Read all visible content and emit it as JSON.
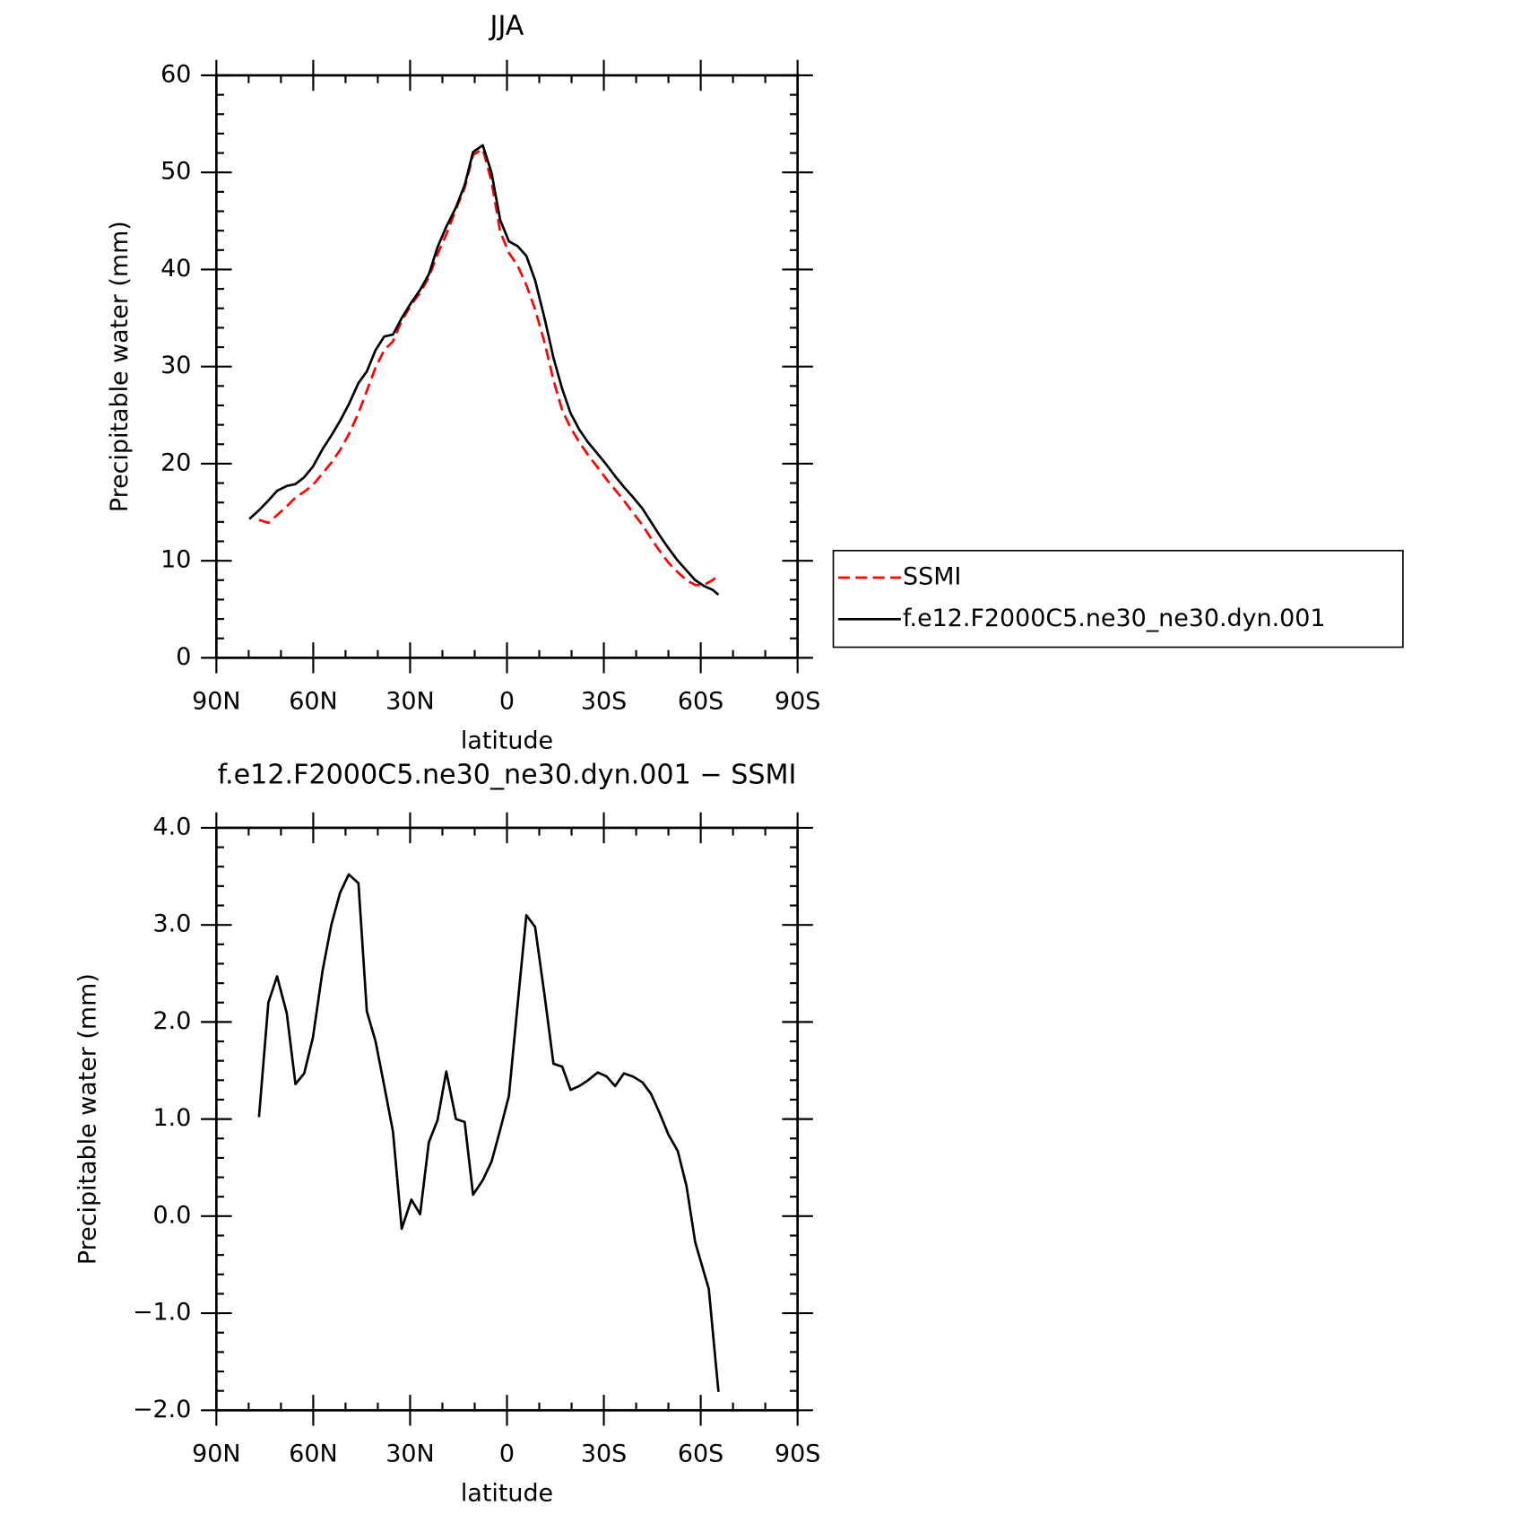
{
  "chart_data": [
    {
      "type": "line",
      "title": "JJA",
      "xlabel": "latitude",
      "ylabel": "Precipitable water (mm)",
      "xlim": [
        90,
        -90
      ],
      "xticks": [
        {
          "value": 90,
          "label": "90N"
        },
        {
          "value": 60,
          "label": "60N"
        },
        {
          "value": 30,
          "label": "30N"
        },
        0,
        {
          "value": -30,
          "label": "30S"
        },
        {
          "value": -60,
          "label": "60S"
        },
        {
          "value": -90,
          "label": "90S"
        }
      ],
      "ylim": [
        0,
        60
      ],
      "yticks": [
        0,
        10,
        20,
        30,
        40,
        50,
        60
      ],
      "legend": "right",
      "x": [
        79.8,
        76.8,
        73.9,
        71.2,
        68.2,
        65.5,
        62.8,
        60.1,
        57.1,
        54.4,
        51.7,
        49.0,
        46.0,
        43.4,
        40.7,
        38.0,
        35.3,
        32.6,
        29.6,
        26.9,
        24.2,
        21.5,
        18.8,
        15.8,
        13.1,
        10.5,
        7.5,
        4.8,
        2.1,
        -0.6,
        -3.3,
        -6.0,
        -8.7,
        -11.7,
        -14.4,
        -17.1,
        -19.7,
        -22.4,
        -25.1,
        -28.1,
        -30.8,
        -33.5,
        -36.2,
        -38.9,
        -41.9,
        -44.6,
        -47.3,
        -50.0,
        -52.9,
        -55.6,
        -58.3,
        -61.0,
        -63.7,
        -65.5
      ],
      "series": [
        {
          "name": "SSMI",
          "color": "#ff0000",
          "dashed": true,
          "values": [
            null,
            14.2,
            13.9,
            14.7,
            15.6,
            16.5,
            17.1,
            17.8,
            19.0,
            20.1,
            21.4,
            23.0,
            25.2,
            27.5,
            29.9,
            31.7,
            32.6,
            34.7,
            36.4,
            37.6,
            39.2,
            41.6,
            43.6,
            46.2,
            48.4,
            51.8,
            52.4,
            49.1,
            43.9,
            41.7,
            40.4,
            38.4,
            35.9,
            32.4,
            28.6,
            25.5,
            23.7,
            22.2,
            20.9,
            19.6,
            18.4,
            17.3,
            16.2,
            15.0,
            13.7,
            12.3,
            11.0,
            9.8,
            8.8,
            8.0,
            7.5,
            7.5,
            8.0,
            8.5
          ]
        },
        {
          "name": "f.e12.F2000C5.ne30_ne30.dyn.001",
          "color": "#000000",
          "dashed": false,
          "values": [
            14.3,
            15.2,
            16.2,
            17.2,
            17.7,
            17.9,
            18.6,
            19.7,
            21.5,
            22.9,
            24.4,
            26.1,
            28.3,
            29.5,
            31.7,
            33.1,
            33.3,
            35.0,
            36.6,
            37.9,
            39.5,
            42.3,
            44.4,
            46.4,
            48.7,
            52.1,
            52.8,
            50.0,
            45.1,
            42.9,
            42.4,
            41.4,
            38.9,
            34.9,
            30.9,
            27.7,
            25.2,
            23.5,
            22.2,
            21.0,
            19.9,
            18.7,
            17.6,
            16.6,
            15.4,
            14.0,
            12.6,
            11.3,
            10.0,
            9.0,
            8.0,
            7.4,
            7.0,
            6.5
          ]
        }
      ]
    },
    {
      "type": "line",
      "title": "f.e12.F2000C5.ne30_ne30.dyn.001 − SSMI",
      "xlabel": "latitude",
      "ylabel": "Precipitable water (mm)",
      "xlim": [
        90,
        -90
      ],
      "xticks": [
        {
          "value": 90,
          "label": "90N"
        },
        {
          "value": 60,
          "label": "60N"
        },
        {
          "value": 30,
          "label": "30N"
        },
        0,
        {
          "value": -30,
          "label": "30S"
        },
        {
          "value": -60,
          "label": "60S"
        },
        {
          "value": -90,
          "label": "90S"
        }
      ],
      "ylim": [
        -2,
        4
      ],
      "yticks": [
        {
          "value": -2,
          "label": "−2.0"
        },
        {
          "value": -1,
          "label": "−1.0"
        },
        {
          "value": 0,
          "label": "0.0"
        },
        {
          "value": 1,
          "label": "1.0"
        },
        {
          "value": 2,
          "label": "2.0"
        },
        {
          "value": 3,
          "label": "3.0"
        },
        {
          "value": 4,
          "label": "4.0"
        }
      ],
      "x": [
        76.8,
        73.9,
        71.2,
        68.2,
        65.5,
        62.8,
        60.1,
        57.1,
        54.4,
        51.7,
        49.0,
        46.0,
        43.4,
        40.7,
        38.0,
        35.3,
        32.6,
        29.6,
        26.9,
        24.2,
        21.5,
        18.8,
        15.8,
        13.1,
        10.5,
        7.5,
        4.8,
        2.1,
        -0.6,
        -3.3,
        -6.0,
        -8.7,
        -11.7,
        -14.4,
        -17.1,
        -19.7,
        -22.4,
        -25.1,
        -28.1,
        -30.8,
        -33.5,
        -36.2,
        -38.9,
        -41.9,
        -44.6,
        -47.3,
        -50.0,
        -52.9,
        -55.6,
        -58.3,
        -62.5,
        -65.5
      ],
      "series": [
        {
          "color": "#000000",
          "dashed": false,
          "values": [
            1.02,
            2.2,
            2.47,
            2.09,
            1.36,
            1.47,
            1.84,
            2.53,
            3.0,
            3.33,
            3.52,
            3.43,
            2.11,
            1.8,
            1.34,
            0.87,
            -0.13,
            0.17,
            0.02,
            0.76,
            0.99,
            1.49,
            1.0,
            0.97,
            0.22,
            0.37,
            0.56,
            0.89,
            1.24,
            2.18,
            3.1,
            2.98,
            2.26,
            1.57,
            1.54,
            1.3,
            1.34,
            1.4,
            1.48,
            1.44,
            1.34,
            1.47,
            1.44,
            1.38,
            1.26,
            1.06,
            0.84,
            0.67,
            0.31,
            -0.27,
            -0.75,
            -1.81
          ]
        }
      ]
    }
  ]
}
